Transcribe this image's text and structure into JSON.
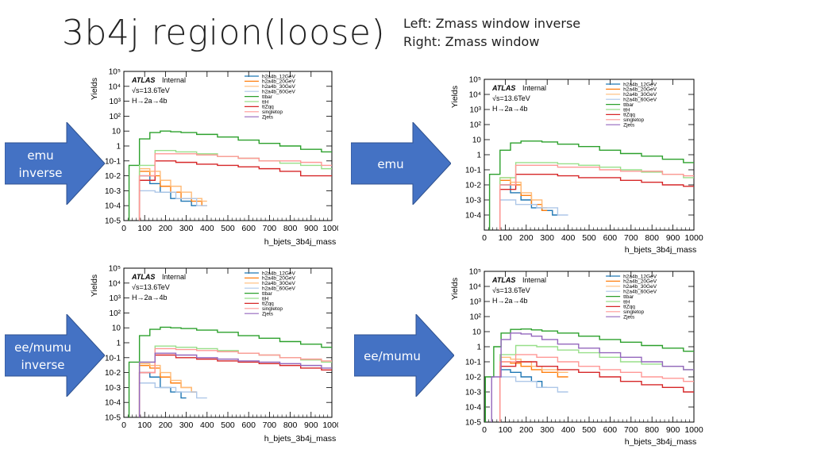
{
  "slide": {
    "title": "3b4j region(loose)",
    "note_line1": "Left: Zmass window inverse",
    "note_line2": "Right: Zmass window"
  },
  "arrows": [
    {
      "line1": "emu",
      "line2": "inverse"
    },
    {
      "line1": "emu",
      "line2": ""
    },
    {
      "line1": "ee/mumu",
      "line2": "inverse"
    },
    {
      "line1": "ee/mumu",
      "line2": ""
    }
  ],
  "colors": {
    "h2a4b_12GeV": "#1f77b4",
    "h2a4b_20GeV": "#ff7f0e",
    "h2a4b_30GeV": "#ffbb78",
    "h2a4b_60GeV": "#aec7e8",
    "ttbar": "#2ca02c",
    "ttH": "#98df8a",
    "ttZqq": "#d62728",
    "singletop": "#ff9896",
    "Zjets": "#9467bd",
    "arrow": "#4472c4"
  },
  "chart_data": [
    {
      "type": "line",
      "panel": "emu inverse",
      "xlabel": "h_bjets_3b4j_mass",
      "ylabel": "Yields",
      "xlim": [
        0,
        1000
      ],
      "ylim": [
        1e-05,
        100000.0
      ],
      "log_y": true,
      "xticks": [
        "0",
        "100",
        "200",
        "300",
        "400",
        "500",
        "600",
        "700",
        "800",
        "900",
        "1000"
      ],
      "yticks": [
        "10-5",
        "10-4",
        "10-3",
        "10-2",
        "10-1",
        "1",
        "10",
        "10²",
        "10³",
        "10⁴",
        "10⁵"
      ],
      "atlas_label": "ATLAS",
      "atlas_sub": "Internal",
      "energy": "√s=13.6TeV",
      "process": "H→2a→4b",
      "legend_position": "top-right",
      "series": [
        {
          "name": "h2a4b_12GeV",
          "key": "h2a4b_12GeV",
          "x": [
            100,
            150,
            200,
            250,
            300,
            350
          ],
          "y": [
            0.01,
            0.003,
            0.0008,
            0.0003,
            0.0002,
            0.0001
          ]
        },
        {
          "name": "h2a4b_20GeV",
          "key": "h2a4b_20GeV",
          "x": [
            100,
            150,
            200,
            250,
            300,
            350,
            400
          ],
          "y": [
            0.02,
            0.01,
            0.002,
            0.0008,
            0.0003,
            0.0002,
            0.0001
          ]
        },
        {
          "name": "h2a4b_30GeV",
          "key": "h2a4b_30GeV",
          "x": [
            100,
            150,
            200,
            250,
            300,
            350,
            400
          ],
          "y": [
            0.03,
            0.02,
            0.005,
            0.002,
            0.0008,
            0.0003,
            0.0002
          ]
        },
        {
          "name": "h2a4b_60GeV",
          "key": "h2a4b_60GeV",
          "x": [
            100,
            200,
            300,
            400
          ],
          "y": [
            0.001,
            0.0008,
            0.0003,
            0.0001
          ]
        },
        {
          "name": "ttbar",
          "key": "ttbar",
          "x": [
            50,
            100,
            150,
            200,
            250,
            300,
            400,
            500,
            600,
            700,
            800,
            900,
            1000
          ],
          "y": [
            0.05,
            3,
            8,
            10,
            9,
            8,
            6,
            4,
            2.5,
            1.5,
            1,
            0.6,
            0.4
          ]
        },
        {
          "name": "ttH",
          "key": "ttH",
          "x": [
            100,
            200,
            300,
            400,
            500,
            600,
            700,
            800,
            900,
            1000
          ],
          "y": [
            0.05,
            0.5,
            0.4,
            0.3,
            0.2,
            0.15,
            0.1,
            0.07,
            0.05,
            0.03
          ]
        },
        {
          "name": "ttZqq",
          "key": "ttZqq",
          "x": [
            100,
            200,
            300,
            400,
            500,
            600,
            700,
            800,
            900,
            1000
          ],
          "y": [
            0.005,
            0.1,
            0.08,
            0.06,
            0.05,
            0.04,
            0.03,
            0.02,
            0.01,
            0.01
          ]
        },
        {
          "name": "singletop",
          "key": "singletop",
          "x": [
            100,
            200,
            300,
            400,
            500,
            600,
            700,
            800,
            900,
            1000
          ],
          "y": [
            0.01,
            0.3,
            0.3,
            0.25,
            0.2,
            0.15,
            0.1,
            0.1,
            0.08,
            0.05
          ]
        },
        {
          "name": "Zjets",
          "key": "Zjets",
          "x": [],
          "y": []
        }
      ]
    },
    {
      "type": "line",
      "panel": "emu",
      "xlabel": "h_bjets_3b4j_mass",
      "ylabel": "Yields",
      "xlim": [
        0,
        1000
      ],
      "ylim": [
        1e-05,
        100000.0
      ],
      "log_y": true,
      "xticks": [
        "0",
        "100",
        "200",
        "300",
        "400",
        "500",
        "600",
        "700",
        "800",
        "900",
        "1000"
      ],
      "yticks": [
        "",
        "10-4",
        "10-3",
        "10-2",
        "10-1",
        "1",
        "10",
        "10²",
        "10³",
        "10⁴",
        "10⁵"
      ],
      "atlas_label": "ATLAS",
      "atlas_sub": "Internal",
      "energy": "√s=13.6TeV",
      "process": "H→2a→4b",
      "legend_position": "top-right",
      "series": [
        {
          "name": "h2a4b_12GeV",
          "key": "h2a4b_12GeV",
          "x": [
            100,
            150,
            200,
            250,
            300,
            350
          ],
          "y": [
            0.01,
            0.003,
            0.001,
            0.0003,
            0.0002,
            0.0001
          ]
        },
        {
          "name": "h2a4b_20GeV",
          "key": "h2a4b_20GeV",
          "x": [
            100,
            150,
            200,
            250,
            300
          ],
          "y": [
            0.02,
            0.01,
            0.002,
            0.0005,
            0.0002
          ]
        },
        {
          "name": "h2a4b_30GeV",
          "key": "h2a4b_30GeV",
          "x": [
            100,
            150,
            200,
            250,
            300
          ],
          "y": [
            0.03,
            0.015,
            0.003,
            0.001,
            0.0003
          ]
        },
        {
          "name": "h2a4b_60GeV",
          "key": "h2a4b_60GeV",
          "x": [
            100,
            200,
            300,
            400
          ],
          "y": [
            0.001,
            0.0005,
            0.0003,
            0.0001
          ]
        },
        {
          "name": "ttbar",
          "key": "ttbar",
          "x": [
            50,
            100,
            150,
            200,
            250,
            300,
            400,
            500,
            600,
            700,
            800,
            900,
            1000
          ],
          "y": [
            0.05,
            2,
            6,
            8,
            8,
            7,
            5,
            3.5,
            2,
            1.2,
            0.8,
            0.5,
            0.3
          ]
        },
        {
          "name": "ttH",
          "key": "ttH",
          "x": [
            100,
            200,
            300,
            400,
            500,
            600,
            700,
            800,
            900,
            1000
          ],
          "y": [
            0.03,
            0.3,
            0.3,
            0.25,
            0.2,
            0.15,
            0.1,
            0.07,
            0.05,
            0.03
          ]
        },
        {
          "name": "ttZqq",
          "key": "ttZqq",
          "x": [
            100,
            200,
            300,
            400,
            500,
            600,
            700,
            800,
            900,
            1000
          ],
          "y": [
            0.005,
            0.05,
            0.05,
            0.04,
            0.03,
            0.03,
            0.02,
            0.015,
            0.01,
            0.008
          ]
        },
        {
          "name": "singletop",
          "key": "singletop",
          "x": [
            100,
            200,
            300,
            400,
            500,
            600,
            700,
            800,
            900,
            1000
          ],
          "y": [
            0.01,
            0.2,
            0.2,
            0.15,
            0.15,
            0.1,
            0.08,
            0.08,
            0.05,
            0.04
          ]
        },
        {
          "name": "Zjets",
          "key": "Zjets",
          "x": [],
          "y": []
        }
      ]
    },
    {
      "type": "line",
      "panel": "ee/mumu inverse",
      "xlabel": "h_bjets_3b4j_mass",
      "ylabel": "Yields",
      "xlim": [
        0,
        1000
      ],
      "ylim": [
        1e-05,
        100000.0
      ],
      "log_y": true,
      "xticks": [
        "0",
        "100",
        "200",
        "300",
        "400",
        "500",
        "600",
        "700",
        "800",
        "900",
        "1000"
      ],
      "yticks": [
        "10-5",
        "10-4",
        "10-3",
        "10-2",
        "10-1",
        "1",
        "10",
        "10²",
        "10³",
        "10⁴",
        "10⁵"
      ],
      "atlas_label": "ATLAS",
      "atlas_sub": "Internal",
      "energy": "√s=13.6TeV",
      "process": "H→2a→4b",
      "legend_position": "top-right",
      "series": [
        {
          "name": "h2a4b_12GeV",
          "key": "h2a4b_12GeV",
          "x": [
            100,
            150,
            200,
            250,
            300
          ],
          "y": [
            0.01,
            0.005,
            0.001,
            0.0005,
            0.0002
          ]
        },
        {
          "name": "h2a4b_20GeV",
          "key": "h2a4b_20GeV",
          "x": [
            100,
            150,
            200,
            250,
            300,
            350
          ],
          "y": [
            0.03,
            0.02,
            0.005,
            0.002,
            0.001,
            0.0005
          ]
        },
        {
          "name": "h2a4b_30GeV",
          "key": "h2a4b_30GeV",
          "x": [
            100,
            150,
            200,
            250,
            300,
            350
          ],
          "y": [
            0.04,
            0.03,
            0.01,
            0.003,
            0.001,
            0.0005
          ]
        },
        {
          "name": "h2a4b_60GeV",
          "key": "h2a4b_60GeV",
          "x": [
            100,
            200,
            300,
            400
          ],
          "y": [
            0.002,
            0.001,
            0.0005,
            0.0002
          ]
        },
        {
          "name": "ttbar",
          "key": "ttbar",
          "x": [
            50,
            100,
            150,
            200,
            250,
            300,
            400,
            500,
            600,
            700,
            800,
            900,
            1000
          ],
          "y": [
            0.05,
            3,
            8,
            11,
            10,
            9,
            7,
            5,
            3,
            2,
            1.2,
            0.8,
            0.5
          ]
        },
        {
          "name": "ttH",
          "key": "ttH",
          "x": [
            100,
            200,
            300,
            400,
            500,
            600,
            700,
            800,
            900,
            1000
          ],
          "y": [
            0.05,
            0.6,
            0.5,
            0.4,
            0.3,
            0.2,
            0.15,
            0.1,
            0.07,
            0.05
          ]
        },
        {
          "name": "ttZqq",
          "key": "ttZqq",
          "x": [
            100,
            200,
            300,
            400,
            500,
            600,
            700,
            800,
            900,
            1000
          ],
          "y": [
            0.01,
            0.15,
            0.1,
            0.08,
            0.06,
            0.05,
            0.04,
            0.03,
            0.02,
            0.015
          ]
        },
        {
          "name": "singletop",
          "key": "singletop",
          "x": [
            100,
            200,
            300,
            400,
            500,
            600,
            700,
            800,
            900,
            1000
          ],
          "y": [
            0.01,
            0.4,
            0.35,
            0.3,
            0.25,
            0.2,
            0.15,
            0.1,
            0.08,
            0.06
          ]
        },
        {
          "name": "Zjets",
          "key": "Zjets",
          "x": [
            100,
            200,
            300,
            400,
            500,
            600,
            700,
            800,
            900,
            1000
          ],
          "y": [
            0.05,
            0.2,
            0.15,
            0.1,
            0.08,
            0.06,
            0.05,
            0.04,
            0.03,
            0.02
          ]
        }
      ]
    },
    {
      "type": "line",
      "panel": "ee/mumu",
      "xlabel": "h_bjets_3b4j_mass",
      "ylabel": "Yields",
      "xlim": [
        0,
        1000
      ],
      "ylim": [
        1e-05,
        100000.0
      ],
      "log_y": true,
      "xticks": [
        "0",
        "100",
        "200",
        "300",
        "400",
        "500",
        "600",
        "700",
        "800",
        "900",
        "1000"
      ],
      "yticks": [
        "10-5",
        "10-4",
        "10-3",
        "10-2",
        "10-1",
        "1",
        "10",
        "10²",
        "10³",
        "10⁴",
        "10⁵"
      ],
      "atlas_label": "ATLAS",
      "atlas_sub": "Internal",
      "energy": "√s=13.6TeV",
      "process": "H→2a→4b",
      "legend_position": "top-right",
      "series": [
        {
          "name": "h2a4b_12GeV",
          "key": "h2a4b_12GeV",
          "x": [
            100,
            150,
            200,
            250,
            300
          ],
          "y": [
            0.03,
            0.02,
            0.01,
            0.005,
            0.002
          ]
        },
        {
          "name": "h2a4b_20GeV",
          "key": "h2a4b_20GeV",
          "x": [
            100,
            150,
            200,
            250,
            300,
            400
          ],
          "y": [
            0.1,
            0.08,
            0.05,
            0.03,
            0.02,
            0.01
          ]
        },
        {
          "name": "h2a4b_30GeV",
          "key": "h2a4b_30GeV",
          "x": [
            100,
            150,
            200,
            250,
            300,
            400
          ],
          "y": [
            0.2,
            0.15,
            0.1,
            0.05,
            0.03,
            0.02
          ]
        },
        {
          "name": "h2a4b_60GeV",
          "key": "h2a4b_60GeV",
          "x": [
            100,
            200,
            300,
            400
          ],
          "y": [
            0.01,
            0.005,
            0.002,
            0.001
          ]
        },
        {
          "name": "ttbar",
          "key": "ttbar",
          "x": [
            30,
            60,
            100,
            150,
            200,
            250,
            300,
            400,
            500,
            600,
            700,
            800,
            900,
            1000
          ],
          "y": [
            0.01,
            1,
            8,
            14,
            15,
            13,
            11,
            8,
            5,
            3,
            2,
            1.2,
            0.8,
            0.5
          ]
        },
        {
          "name": "ttH",
          "key": "ttH",
          "x": [
            100,
            200,
            300,
            400,
            500,
            600,
            700,
            800,
            900,
            1000
          ],
          "y": [
            0.3,
            1.2,
            1,
            0.6,
            0.4,
            0.2,
            0.1,
            0.07,
            0.05,
            0.03
          ]
        },
        {
          "name": "ttZqq",
          "key": "ttZqq",
          "x": [
            100,
            200,
            300,
            400,
            500,
            600,
            700,
            800,
            900,
            1000
          ],
          "y": [
            0.05,
            0.1,
            0.05,
            0.03,
            0.02,
            0.01,
            0.005,
            0.003,
            0.002,
            0.001
          ]
        },
        {
          "name": "singletop",
          "key": "singletop",
          "x": [
            100,
            200,
            300,
            400,
            500,
            600,
            700,
            800,
            900,
            1000
          ],
          "y": [
            0.1,
            0.3,
            0.2,
            0.1,
            0.05,
            0.03,
            0.02,
            0.01,
            0.008,
            0.005
          ]
        },
        {
          "name": "Zjets",
          "key": "Zjets",
          "x": [
            60,
            100,
            150,
            200,
            250,
            300,
            400,
            500,
            600,
            700,
            800,
            900,
            1000
          ],
          "y": [
            0.01,
            3,
            8,
            7,
            5,
            3,
            1.5,
            0.8,
            0.4,
            0.2,
            0.1,
            0.05,
            0.03
          ]
        }
      ]
    }
  ]
}
